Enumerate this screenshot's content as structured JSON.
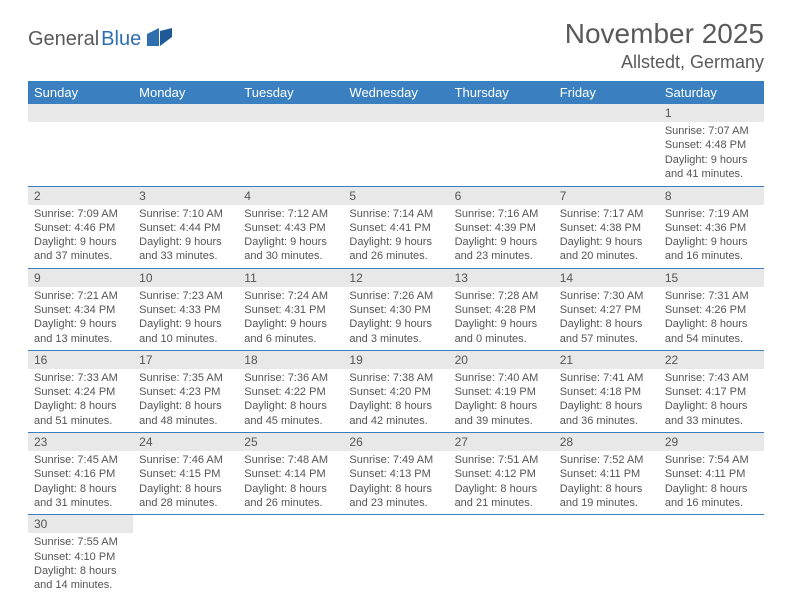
{
  "brand": {
    "general": "General",
    "blue": "Blue"
  },
  "title": "November 2025",
  "location": "Allstedt, Germany",
  "colors": {
    "header_bg": "#3a80c0",
    "header_text": "#ffffff",
    "daynum_bg": "#e8e8e8",
    "cell_border": "#3a80c0",
    "text": "#555555",
    "logo_text": "#5a5a5a",
    "logo_blue": "#2f6fb0"
  },
  "weekdays": [
    "Sunday",
    "Monday",
    "Tuesday",
    "Wednesday",
    "Thursday",
    "Friday",
    "Saturday"
  ],
  "weeks": [
    [
      null,
      null,
      null,
      null,
      null,
      null,
      {
        "n": "1",
        "sr": "Sunrise: 7:07 AM",
        "ss": "Sunset: 4:48 PM",
        "d1": "Daylight: 9 hours",
        "d2": "and 41 minutes."
      }
    ],
    [
      {
        "n": "2",
        "sr": "Sunrise: 7:09 AM",
        "ss": "Sunset: 4:46 PM",
        "d1": "Daylight: 9 hours",
        "d2": "and 37 minutes."
      },
      {
        "n": "3",
        "sr": "Sunrise: 7:10 AM",
        "ss": "Sunset: 4:44 PM",
        "d1": "Daylight: 9 hours",
        "d2": "and 33 minutes."
      },
      {
        "n": "4",
        "sr": "Sunrise: 7:12 AM",
        "ss": "Sunset: 4:43 PM",
        "d1": "Daylight: 9 hours",
        "d2": "and 30 minutes."
      },
      {
        "n": "5",
        "sr": "Sunrise: 7:14 AM",
        "ss": "Sunset: 4:41 PM",
        "d1": "Daylight: 9 hours",
        "d2": "and 26 minutes."
      },
      {
        "n": "6",
        "sr": "Sunrise: 7:16 AM",
        "ss": "Sunset: 4:39 PM",
        "d1": "Daylight: 9 hours",
        "d2": "and 23 minutes."
      },
      {
        "n": "7",
        "sr": "Sunrise: 7:17 AM",
        "ss": "Sunset: 4:38 PM",
        "d1": "Daylight: 9 hours",
        "d2": "and 20 minutes."
      },
      {
        "n": "8",
        "sr": "Sunrise: 7:19 AM",
        "ss": "Sunset: 4:36 PM",
        "d1": "Daylight: 9 hours",
        "d2": "and 16 minutes."
      }
    ],
    [
      {
        "n": "9",
        "sr": "Sunrise: 7:21 AM",
        "ss": "Sunset: 4:34 PM",
        "d1": "Daylight: 9 hours",
        "d2": "and 13 minutes."
      },
      {
        "n": "10",
        "sr": "Sunrise: 7:23 AM",
        "ss": "Sunset: 4:33 PM",
        "d1": "Daylight: 9 hours",
        "d2": "and 10 minutes."
      },
      {
        "n": "11",
        "sr": "Sunrise: 7:24 AM",
        "ss": "Sunset: 4:31 PM",
        "d1": "Daylight: 9 hours",
        "d2": "and 6 minutes."
      },
      {
        "n": "12",
        "sr": "Sunrise: 7:26 AM",
        "ss": "Sunset: 4:30 PM",
        "d1": "Daylight: 9 hours",
        "d2": "and 3 minutes."
      },
      {
        "n": "13",
        "sr": "Sunrise: 7:28 AM",
        "ss": "Sunset: 4:28 PM",
        "d1": "Daylight: 9 hours",
        "d2": "and 0 minutes."
      },
      {
        "n": "14",
        "sr": "Sunrise: 7:30 AM",
        "ss": "Sunset: 4:27 PM",
        "d1": "Daylight: 8 hours",
        "d2": "and 57 minutes."
      },
      {
        "n": "15",
        "sr": "Sunrise: 7:31 AM",
        "ss": "Sunset: 4:26 PM",
        "d1": "Daylight: 8 hours",
        "d2": "and 54 minutes."
      }
    ],
    [
      {
        "n": "16",
        "sr": "Sunrise: 7:33 AM",
        "ss": "Sunset: 4:24 PM",
        "d1": "Daylight: 8 hours",
        "d2": "and 51 minutes."
      },
      {
        "n": "17",
        "sr": "Sunrise: 7:35 AM",
        "ss": "Sunset: 4:23 PM",
        "d1": "Daylight: 8 hours",
        "d2": "and 48 minutes."
      },
      {
        "n": "18",
        "sr": "Sunrise: 7:36 AM",
        "ss": "Sunset: 4:22 PM",
        "d1": "Daylight: 8 hours",
        "d2": "and 45 minutes."
      },
      {
        "n": "19",
        "sr": "Sunrise: 7:38 AM",
        "ss": "Sunset: 4:20 PM",
        "d1": "Daylight: 8 hours",
        "d2": "and 42 minutes."
      },
      {
        "n": "20",
        "sr": "Sunrise: 7:40 AM",
        "ss": "Sunset: 4:19 PM",
        "d1": "Daylight: 8 hours",
        "d2": "and 39 minutes."
      },
      {
        "n": "21",
        "sr": "Sunrise: 7:41 AM",
        "ss": "Sunset: 4:18 PM",
        "d1": "Daylight: 8 hours",
        "d2": "and 36 minutes."
      },
      {
        "n": "22",
        "sr": "Sunrise: 7:43 AM",
        "ss": "Sunset: 4:17 PM",
        "d1": "Daylight: 8 hours",
        "d2": "and 33 minutes."
      }
    ],
    [
      {
        "n": "23",
        "sr": "Sunrise: 7:45 AM",
        "ss": "Sunset: 4:16 PM",
        "d1": "Daylight: 8 hours",
        "d2": "and 31 minutes."
      },
      {
        "n": "24",
        "sr": "Sunrise: 7:46 AM",
        "ss": "Sunset: 4:15 PM",
        "d1": "Daylight: 8 hours",
        "d2": "and 28 minutes."
      },
      {
        "n": "25",
        "sr": "Sunrise: 7:48 AM",
        "ss": "Sunset: 4:14 PM",
        "d1": "Daylight: 8 hours",
        "d2": "and 26 minutes."
      },
      {
        "n": "26",
        "sr": "Sunrise: 7:49 AM",
        "ss": "Sunset: 4:13 PM",
        "d1": "Daylight: 8 hours",
        "d2": "and 23 minutes."
      },
      {
        "n": "27",
        "sr": "Sunrise: 7:51 AM",
        "ss": "Sunset: 4:12 PM",
        "d1": "Daylight: 8 hours",
        "d2": "and 21 minutes."
      },
      {
        "n": "28",
        "sr": "Sunrise: 7:52 AM",
        "ss": "Sunset: 4:11 PM",
        "d1": "Daylight: 8 hours",
        "d2": "and 19 minutes."
      },
      {
        "n": "29",
        "sr": "Sunrise: 7:54 AM",
        "ss": "Sunset: 4:11 PM",
        "d1": "Daylight: 8 hours",
        "d2": "and 16 minutes."
      }
    ],
    [
      {
        "n": "30",
        "sr": "Sunrise: 7:55 AM",
        "ss": "Sunset: 4:10 PM",
        "d1": "Daylight: 8 hours",
        "d2": "and 14 minutes."
      },
      null,
      null,
      null,
      null,
      null,
      null
    ]
  ]
}
